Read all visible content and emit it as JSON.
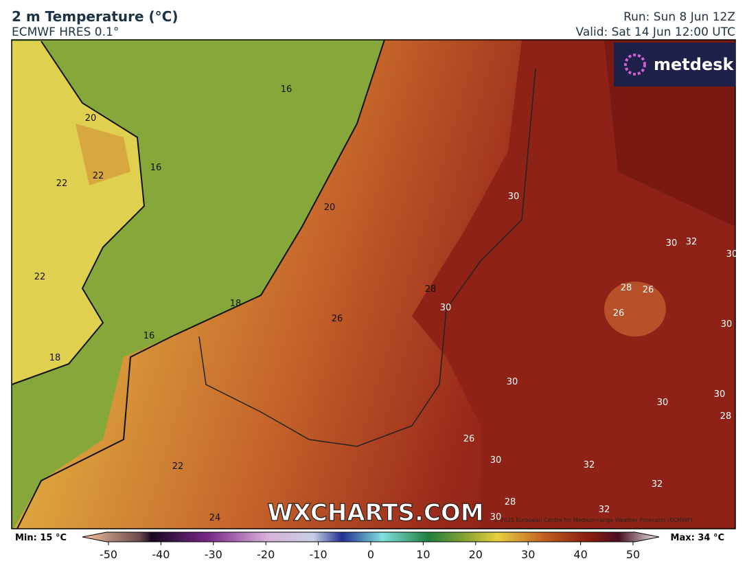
{
  "header": {
    "title": "2 m Temperature (°C)",
    "subtitle": "ECMWF HRES 0.1°",
    "run": "Run: Sun 8 Jun 12Z",
    "valid": "Valid: Sat 14 Jun 12:00 UTC"
  },
  "logo": "metdesk",
  "watermark": "WXCHARTS.COM",
  "copyright": "© 2025 European Centre for Medium-range Weather Forecasts (ECMWF)",
  "contour_labels": [
    "16",
    "20",
    "16",
    "22",
    "22",
    "20",
    "30",
    "30",
    "32",
    "30",
    "22",
    "28",
    "28",
    "26",
    "18",
    "30",
    "26",
    "26",
    "30",
    "16",
    "18",
    "30",
    "30",
    "30",
    "28",
    "26",
    "30",
    "32",
    "22",
    "32",
    "28",
    "32",
    "24",
    "30"
  ],
  "colorbar": {
    "min_label": "Min: 15 °C",
    "max_label": "Max: 34 °C",
    "ticks": [
      -50,
      -40,
      -30,
      -20,
      -10,
      0,
      10,
      20,
      30,
      40,
      50
    ]
  }
}
